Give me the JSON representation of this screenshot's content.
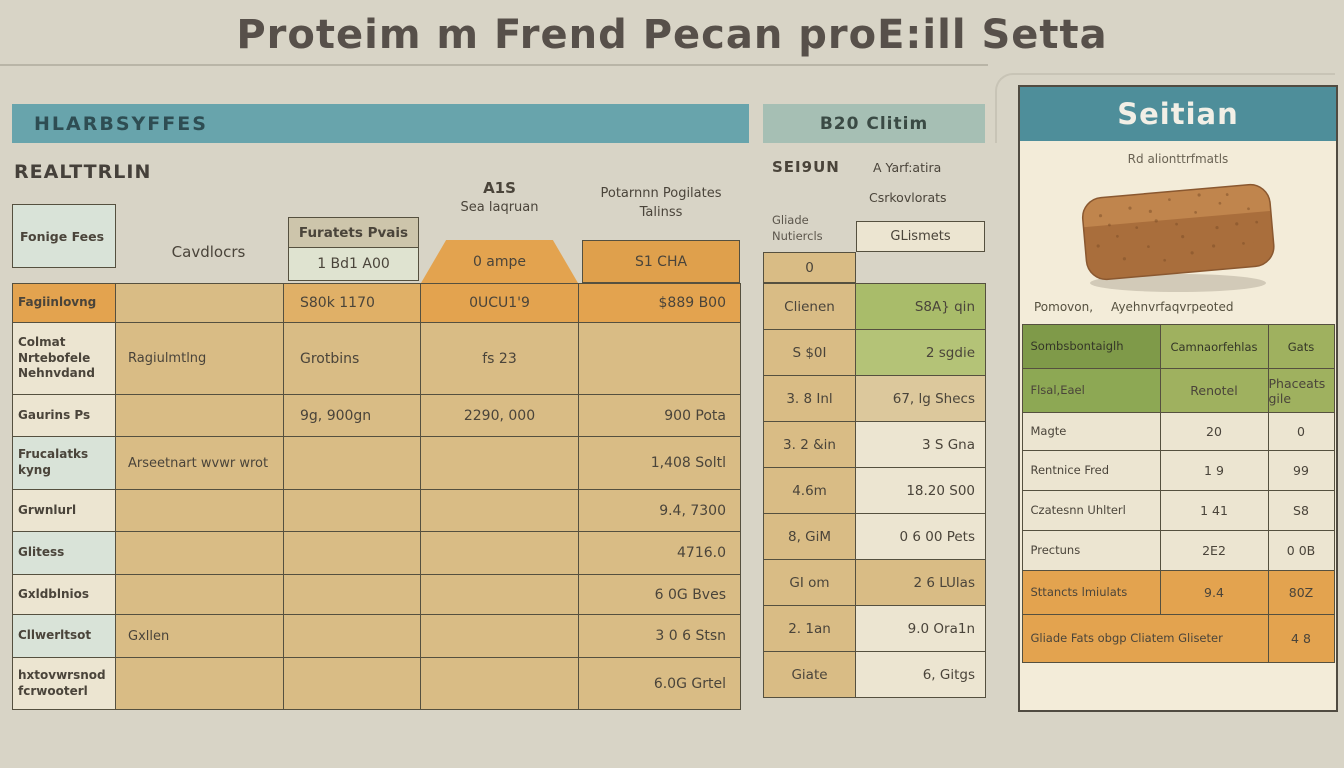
{
  "title": "Proteim m Frend Pecan proE:ill Setta",
  "palette": {
    "page_bg": "#d8d4c6",
    "teal": "#68a4ac",
    "teal_light": "#a6bfb4",
    "teal_dark": "#4e8e9a",
    "tan": "#d9bc85",
    "tan_light": "#dcc89c",
    "orange": "#e3a34f",
    "orange_light": "#e0b067",
    "cream": "#ece5d1",
    "mint": "#d9e3d8",
    "green": "#a9bc6a",
    "green_light": "#b4c377",
    "olive": "#9fb15f",
    "olive_mid": "#8da854",
    "olive_dark": "#7f9a49",
    "card_bg": "#f3ecd9",
    "bread_brown": "#a96e3c",
    "border": "#55503f"
  },
  "left_panel": {
    "header": "HLARBSYFFES",
    "subheader": "REALTTRLIN",
    "corner_cell": "Fonige Fees",
    "col1_label": "Cavdlocrs",
    "col2_header": "Furatets Pvais",
    "col2_sub": "1 Bd1 A00",
    "col3_label_line1": "A1S",
    "col3_label_line2": "Sea laqruan",
    "col3_header": "0 ampe",
    "col4_label_line1": "Potarnnn Pogilates",
    "col4_label_line2": "Talinss",
    "col4_header": "S1 CHA",
    "row_bgs": [
      [
        "orange",
        "tan",
        "orange_light",
        "orange",
        "orange"
      ],
      [
        "cream",
        "tan",
        "tan",
        "tan",
        "tan"
      ],
      [
        "cream",
        "tan",
        "tan",
        "tan",
        "tan"
      ],
      [
        "mint",
        "tan",
        "tan",
        "tan",
        "tan"
      ],
      [
        "cream",
        "tan",
        "tan",
        "tan",
        "tan"
      ],
      [
        "mint",
        "tan",
        "tan",
        "tan",
        "tan"
      ],
      [
        "cream",
        "tan",
        "tan",
        "tan",
        "tan"
      ],
      [
        "mint",
        "tan",
        "tan",
        "tan",
        "tan"
      ],
      [
        "cream",
        "tan",
        "tan",
        "tan",
        "tan"
      ]
    ]
  },
  "middle_panel": {
    "header": "B20 Clitim",
    "label_left": "SEI9UN",
    "label_right_1": "A Yarf:atira",
    "label_right_2": "Csrkovlorats",
    "sub_left_1": "Gliade",
    "sub_left_2": "Nutiercls",
    "sub_right": "GLismets",
    "right_bgs": [
      "green",
      "green_light",
      "tan_light",
      "cream",
      "cream",
      "cream",
      "tan",
      "cream",
      "cream"
    ]
  },
  "right_panel": {
    "header": "Seitian",
    "subtitle": "Rd alionttrfmatls",
    "caption_left": "Pomovon,",
    "caption_right": "Ayehnvrfaqvrpeoted",
    "header_bgs": [
      "olive_dark",
      "olive",
      "olive"
    ],
    "row_bgs": [
      [
        "olive_mid",
        "olive",
        "olive"
      ],
      [
        "cream",
        "cream",
        "cream"
      ],
      [
        "cream",
        "cream",
        "cream"
      ],
      [
        "cream",
        "cream",
        "cream"
      ],
      [
        "cream",
        "cream",
        "cream"
      ],
      [
        "orange",
        "orange",
        "orange"
      ],
      [
        "orange",
        "orange"
      ]
    ]
  },
  "chart_data": [
    {
      "type": "table",
      "title": "HLARBSYFFES",
      "subtitle": "REALTTRLIN",
      "column_headers": [
        "Fonige Fees / Cavdlocrs",
        "Furatets Pvais / 1 Bd1 A00",
        "A1S Sea laqruan / 0 ampe",
        "Potarnnn Pogilates Talinss / S1 CHA"
      ],
      "rows": [
        [
          "Fagiinlovng",
          "",
          "S80k 1170",
          "0UCU1'9",
          "$889 B00"
        ],
        [
          "Colmat Nrtebofele Nehnvdand",
          "Ragiulmtlng",
          "Grotbins",
          "fs 23",
          ""
        ],
        [
          "Gaurins Ps",
          "",
          "9g, 900gn",
          "2290, 000",
          "900 Pota"
        ],
        [
          "Frucalatks kyng",
          "Arseetnart wvwr wrot",
          "",
          "",
          "1,408 Soltl"
        ],
        [
          "Grwnlurl",
          "",
          "",
          "",
          "9.4, 7300"
        ],
        [
          "Glitess",
          "",
          "",
          "",
          "4716.0"
        ],
        [
          "Gxldblnios",
          "",
          "",
          "",
          "6 0G Bves"
        ],
        [
          "Cllwerltsot",
          "Gxllen",
          "",
          "",
          "3 0 6 Stsn"
        ],
        [
          "hxtovwrsnod fcrwooterl",
          "",
          "",
          "",
          "6.0G Grtel"
        ]
      ]
    },
    {
      "type": "table",
      "title": "B20 Clitim",
      "subtitle": "SEI9UN / A Yarf:atira Csrkovlorats",
      "column_headers": [
        "Gliade Nutiercls",
        "GLismets"
      ],
      "rows": [
        [
          "0",
          ""
        ],
        [
          "Clienen",
          "S8A} qin"
        ],
        [
          "S $0I",
          "2 sgdie"
        ],
        [
          "3. 8 Inl",
          "67, lg Shecs"
        ],
        [
          "3. 2 &in",
          "3 S Gna"
        ],
        [
          "4.6m",
          "18.20 S00"
        ],
        [
          "8, GiM",
          "0 6 00 Pets"
        ],
        [
          "GI om",
          "2 6 LUlas"
        ],
        [
          "2. 1an",
          "9.0 Ora1n"
        ],
        [
          "Giate",
          "6, Gitgs"
        ]
      ]
    },
    {
      "type": "table",
      "title": "Seitian",
      "subtitle": "Rd alionttrfmatls",
      "column_headers": [
        "Sombsbontaiglh",
        "Camnaorfehlas",
        "Gats"
      ],
      "rows": [
        [
          "Flsal,Eael",
          "Renotel",
          "Phaceats gile"
        ],
        [
          "Magte",
          "20",
          "0"
        ],
        [
          "Rentnice Fred",
          "1 9",
          "99"
        ],
        [
          "Czatesnn Uhlterl",
          "1 41",
          "S8"
        ],
        [
          "Prectuns",
          "2E2",
          "0 0B"
        ],
        [
          "Sttancts lmiulats",
          "9.4",
          "80Z"
        ],
        [
          "Gliade Fats obgp Cliatem Gliseter",
          "4 8",
          ""
        ]
      ]
    }
  ]
}
